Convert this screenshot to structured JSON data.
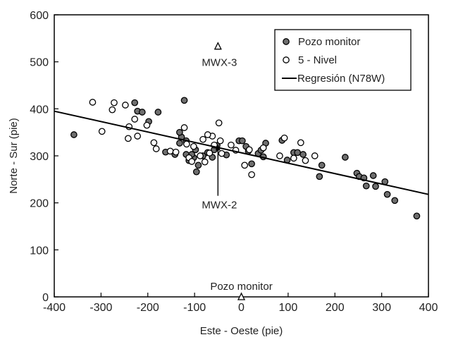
{
  "chart_data": {
    "type": "scatter",
    "xlabel": "Este - Oeste (pie)",
    "ylabel": "Norte - Sur (pie)",
    "xlim": [
      -400,
      400
    ],
    "ylim": [
      0,
      600
    ],
    "xticks": [
      -400,
      -300,
      -200,
      -100,
      0,
      100,
      200,
      300,
      400
    ],
    "yticks": [
      0,
      100,
      200,
      300,
      400,
      500,
      600
    ],
    "grid": false,
    "legend_position": "top-right",
    "series": [
      {
        "name": "Pozo monitor",
        "marker": "filled-circle",
        "color": "#6e6e6e",
        "points": [
          [
            -358,
            345
          ],
          [
            -228,
            413
          ],
          [
            -222,
            395
          ],
          [
            -212,
            393
          ],
          [
            -178,
            393
          ],
          [
            -198,
            373
          ],
          [
            -122,
            418
          ],
          [
            -162,
            308
          ],
          [
            -142,
            303
          ],
          [
            -132,
            327
          ],
          [
            -128,
            340
          ],
          [
            -118,
            303
          ],
          [
            -112,
            290
          ],
          [
            -102,
            296
          ],
          [
            -98,
            313
          ],
          [
            -92,
            280
          ],
          [
            -82,
            300
          ],
          [
            -72,
            307
          ],
          [
            -62,
            297
          ],
          [
            -58,
            313
          ],
          [
            -52,
            322
          ],
          [
            -32,
            302
          ],
          [
            -5,
            332
          ],
          [
            2,
            332
          ],
          [
            10,
            320
          ],
          [
            15,
            310
          ],
          [
            22,
            283
          ],
          [
            36,
            305
          ],
          [
            42,
            312
          ],
          [
            47,
            298
          ],
          [
            52,
            327
          ],
          [
            87,
            333
          ],
          [
            98,
            291
          ],
          [
            112,
            307
          ],
          [
            120,
            307
          ],
          [
            132,
            303
          ],
          [
            167,
            256
          ],
          [
            172,
            280
          ],
          [
            222,
            297
          ],
          [
            247,
            263
          ],
          [
            252,
            256
          ],
          [
            262,
            253
          ],
          [
            267,
            236
          ],
          [
            282,
            258
          ],
          [
            287,
            235
          ],
          [
            307,
            245
          ],
          [
            312,
            218
          ],
          [
            328,
            205
          ],
          [
            375,
            172
          ],
          [
            -132,
            350
          ],
          [
            -106,
            303
          ],
          [
            -96,
            266
          ],
          [
            -118,
            332
          ]
        ]
      },
      {
        "name": "5 - Nivel",
        "marker": "open-circle",
        "color": "#ffffff",
        "points": [
          [
            -318,
            414
          ],
          [
            -298,
            352
          ],
          [
            -272,
            413
          ],
          [
            -276,
            398
          ],
          [
            -248,
            408
          ],
          [
            -242,
            337
          ],
          [
            -240,
            362
          ],
          [
            -228,
            378
          ],
          [
            -222,
            342
          ],
          [
            -202,
            365
          ],
          [
            -187,
            328
          ],
          [
            -182,
            315
          ],
          [
            -152,
            310
          ],
          [
            -140,
            308
          ],
          [
            -122,
            360
          ],
          [
            -117,
            325
          ],
          [
            -112,
            296
          ],
          [
            -106,
            288
          ],
          [
            -102,
            320
          ],
          [
            -88,
            300
          ],
          [
            -78,
            287
          ],
          [
            -68,
            306
          ],
          [
            -62,
            342
          ],
          [
            -58,
            323
          ],
          [
            -48,
            370
          ],
          [
            -45,
            332
          ],
          [
            -42,
            305
          ],
          [
            -22,
            323
          ],
          [
            -12,
            312
          ],
          [
            7,
            280
          ],
          [
            17,
            313
          ],
          [
            22,
            260
          ],
          [
            47,
            317
          ],
          [
            82,
            300
          ],
          [
            92,
            338
          ],
          [
            112,
            295
          ],
          [
            127,
            328
          ],
          [
            137,
            290
          ],
          [
            157,
            300
          ],
          [
            -82,
            335
          ],
          [
            -72,
            345
          ]
        ]
      },
      {
        "name": "Regresión (N78W)",
        "marker": "line",
        "color": "#000000",
        "points": [
          [
            -400,
            395
          ],
          [
            400,
            218
          ]
        ]
      }
    ],
    "annotations": [
      {
        "text": "MWX-3",
        "x": -50,
        "y": 533,
        "marker": "triangle"
      },
      {
        "text": "MWX-2",
        "x": -50,
        "y": 325,
        "arrow_from": [
          -50,
          215
        ]
      },
      {
        "text": "Pozo monitor",
        "x": 0,
        "y": 0,
        "marker": "triangle"
      }
    ]
  }
}
